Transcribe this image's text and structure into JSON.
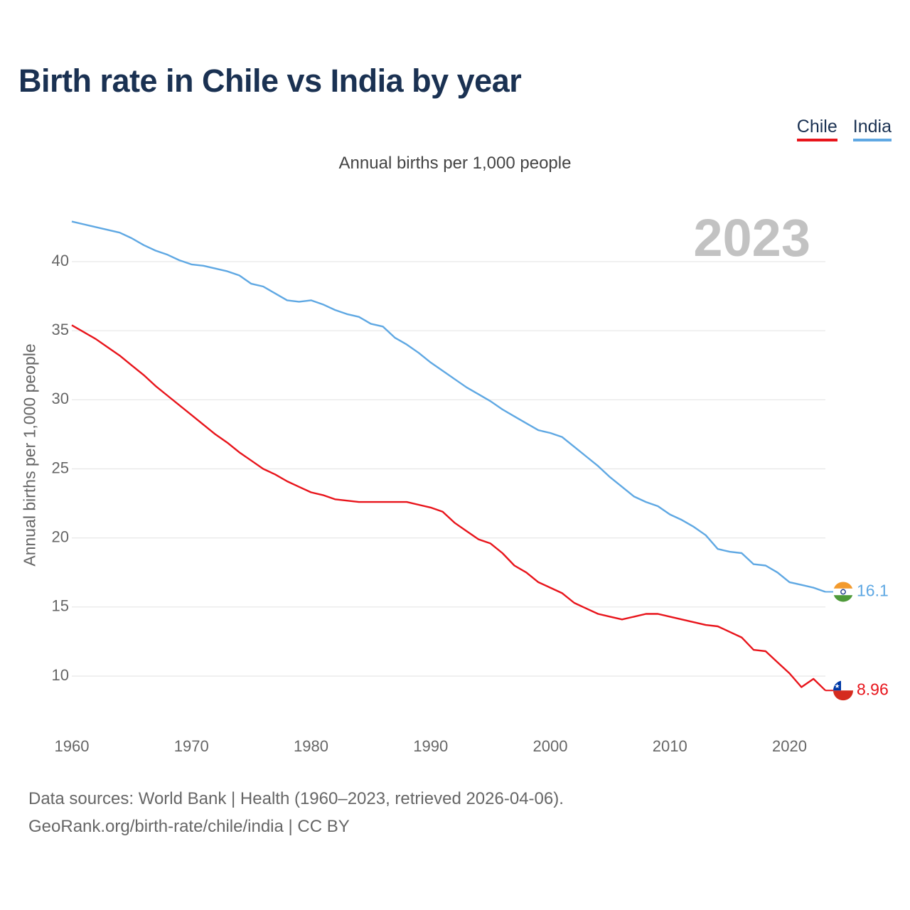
{
  "title": "Birth rate in Chile vs India by year",
  "subtitle": "Annual births per 1,000 people",
  "legend": [
    {
      "name": "Chile",
      "color": "#e8141b"
    },
    {
      "name": "India",
      "color": "#5fa8e3"
    }
  ],
  "year_watermark": "2023",
  "end_labels": {
    "india": "16.1",
    "chile": "8.96"
  },
  "footer": {
    "line1": "Data sources: World Bank | Health (1960–2023, retrieved 2026-04-06).",
    "line2": "GeoRank.org/birth-rate/chile/india | CC BY"
  },
  "chart_data": {
    "type": "line",
    "title": "Birth rate in Chile vs India by year",
    "ylabel": "Annual births per 1,000 people",
    "xlabel": "",
    "xlim": [
      1960,
      2023
    ],
    "ylim": [
      7,
      44
    ],
    "x_ticks": [
      1960,
      1970,
      1980,
      1990,
      2000,
      2010,
      2020
    ],
    "y_ticks": [
      10,
      15,
      20,
      25,
      30,
      35,
      40
    ],
    "grid": true,
    "x": [
      1960,
      1961,
      1962,
      1963,
      1964,
      1965,
      1966,
      1967,
      1968,
      1969,
      1970,
      1971,
      1972,
      1973,
      1974,
      1975,
      1976,
      1977,
      1978,
      1979,
      1980,
      1981,
      1982,
      1983,
      1984,
      1985,
      1986,
      1987,
      1988,
      1989,
      1990,
      1991,
      1992,
      1993,
      1994,
      1995,
      1996,
      1997,
      1998,
      1999,
      2000,
      2001,
      2002,
      2003,
      2004,
      2005,
      2006,
      2007,
      2008,
      2009,
      2010,
      2011,
      2012,
      2013,
      2014,
      2015,
      2016,
      2017,
      2018,
      2019,
      2020,
      2021,
      2022,
      2023
    ],
    "series": [
      {
        "name": "Chile",
        "color": "#e8141b",
        "values": [
          35.4,
          34.9,
          34.4,
          33.8,
          33.2,
          32.5,
          31.8,
          31.0,
          30.3,
          29.6,
          28.9,
          28.2,
          27.5,
          26.9,
          26.2,
          25.6,
          25.0,
          24.6,
          24.1,
          23.7,
          23.3,
          23.1,
          22.8,
          22.7,
          22.6,
          22.6,
          22.6,
          22.6,
          22.6,
          22.4,
          22.2,
          21.9,
          21.1,
          20.5,
          19.9,
          19.6,
          18.9,
          18.0,
          17.5,
          16.8,
          16.4,
          16.0,
          15.3,
          14.9,
          14.5,
          14.3,
          14.1,
          14.3,
          14.5,
          14.5,
          14.3,
          14.1,
          13.9,
          13.7,
          13.6,
          13.2,
          12.8,
          11.9,
          11.8,
          11.0,
          10.2,
          9.2,
          9.8,
          8.96
        ]
      },
      {
        "name": "India",
        "color": "#5fa8e3",
        "values": [
          42.9,
          42.7,
          42.5,
          42.3,
          42.1,
          41.7,
          41.2,
          40.8,
          40.5,
          40.1,
          39.8,
          39.7,
          39.5,
          39.3,
          39.0,
          38.4,
          38.2,
          37.7,
          37.2,
          37.1,
          37.2,
          36.9,
          36.5,
          36.2,
          36.0,
          35.5,
          35.3,
          34.5,
          34.0,
          33.4,
          32.7,
          32.1,
          31.5,
          30.9,
          30.4,
          29.9,
          29.3,
          28.8,
          28.3,
          27.8,
          27.6,
          27.3,
          26.6,
          25.9,
          25.2,
          24.4,
          23.7,
          23.0,
          22.6,
          22.3,
          21.7,
          21.3,
          20.8,
          20.2,
          19.2,
          19.0,
          18.9,
          18.1,
          18.0,
          17.5,
          16.8,
          16.6,
          16.4,
          16.1
        ]
      }
    ]
  }
}
